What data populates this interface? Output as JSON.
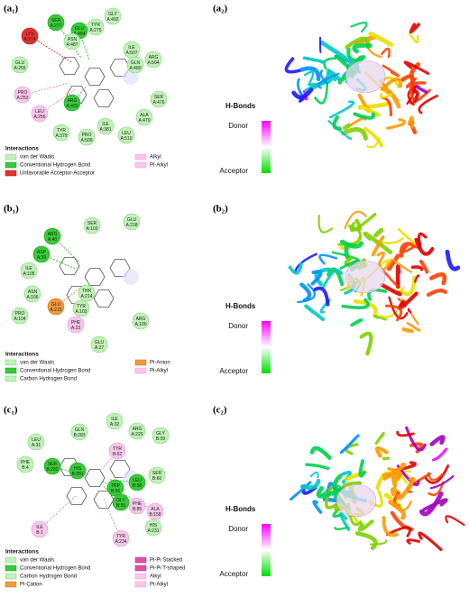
{
  "figure": {
    "rows": [
      {
        "diagram_label": "(a₁)",
        "structure_label": "(a₂)",
        "legend_title": "Interactions",
        "legend": [
          "van der Waals",
          "Conventional Hydrogen Bond",
          "Unfavorable Acceptor-Acceptor",
          "Alkyl",
          "Pi-Alkyl"
        ],
        "hbond_title": "H-Bonds",
        "hbond_donor": "Donor",
        "hbond_acceptor": "Acceptor",
        "residues": [
          {
            "name": "SER",
            "id": "A:277"
          },
          {
            "name": "GLY",
            "id": "A:492"
          },
          {
            "name": "GLU",
            "id": "A:484"
          },
          {
            "name": "TYR",
            "id": "A:275"
          },
          {
            "name": "ASN",
            "id": "A:487"
          },
          {
            "name": "ILE",
            "id": "A:507"
          },
          {
            "name": "GLN",
            "id": "A:480"
          },
          {
            "name": "ARG",
            "id": "A:504"
          },
          {
            "name": "LYS",
            "id": "A:274"
          },
          {
            "name": "GLU",
            "id": "A:255"
          },
          {
            "name": "PRO",
            "id": "A:253"
          },
          {
            "name": "LEU",
            "id": "A:256"
          },
          {
            "name": "ARG",
            "id": "A:483"
          },
          {
            "name": "SER",
            "id": "A:476"
          },
          {
            "name": "ALA",
            "id": "A:479"
          },
          {
            "name": "TYR",
            "id": "A:379"
          },
          {
            "name": "ILE",
            "id": "A:381"
          },
          {
            "name": "LEU",
            "id": "A:510"
          },
          {
            "name": "PRO",
            "id": "A:509"
          }
        ]
      },
      {
        "diagram_label": "(b₁)",
        "structure_label": "(b₂)",
        "legend_title": "Interactions",
        "legend": [
          "van der Waals",
          "Conventional Hydrogen Bond",
          "Carbon Hydrogen Bond",
          "Pi-Anion",
          "Pi-Alkyl"
        ],
        "hbond_title": "H-Bonds",
        "hbond_donor": "Donor",
        "hbond_acceptor": "Acceptor",
        "residues": [
          {
            "name": "ARG",
            "id": "A:40"
          },
          {
            "name": "SER",
            "id": "A:103"
          },
          {
            "name": "GLU",
            "id": "A:218"
          },
          {
            "name": "ASP",
            "id": "A:39"
          },
          {
            "name": "ILE",
            "id": "A:105"
          },
          {
            "name": "ASN",
            "id": "A:106"
          },
          {
            "name": "PRO",
            "id": "A:104"
          },
          {
            "name": "THR",
            "id": "A:214"
          },
          {
            "name": "TYR",
            "id": "A:103"
          },
          {
            "name": "GLU",
            "id": "A:215"
          },
          {
            "name": "PHE",
            "id": "A:23"
          },
          {
            "name": "ARG",
            "id": "A:100"
          },
          {
            "name": "GLU",
            "id": "A:27"
          }
        ]
      },
      {
        "diagram_label": "(c₁)",
        "structure_label": "(c₂)",
        "legend_title": "Interactions",
        "legend": [
          "van der Waals",
          "Conventional Hydrogen Bond",
          "Carbon Hydrogen Bond",
          "Pi-Cation",
          "Pi-Pi Stacked",
          "Pi-Pi T-shaped",
          "Alkyl",
          "Pi-Alkyl"
        ],
        "hbond_title": "H-Bonds",
        "hbond_donor": "Donor",
        "hbond_acceptor": "Acceptor",
        "residues": [
          {
            "name": "LEU",
            "id": "A:31"
          },
          {
            "name": "GLN",
            "id": "B:283"
          },
          {
            "name": "ILE",
            "id": "A:32"
          },
          {
            "name": "ARG",
            "id": "A:229"
          },
          {
            "name": "GLY",
            "id": "B:59"
          },
          {
            "name": "PHE",
            "id": "B:4"
          },
          {
            "name": "SER",
            "id": "B:282"
          },
          {
            "name": "HIS",
            "id": "B:281"
          },
          {
            "name": "TYR",
            "id": "B:62"
          },
          {
            "name": "SER",
            "id": "B:60"
          },
          {
            "name": "LEU",
            "id": "B:58"
          },
          {
            "name": "TRP",
            "id": "B:56"
          },
          {
            "name": "GLY",
            "id": "B:55"
          },
          {
            "name": "PHE",
            "id": "B:85"
          },
          {
            "name": "ALA",
            "id": "B:158"
          },
          {
            "name": "ILE",
            "id": "B:1"
          },
          {
            "name": "HIS",
            "id": "A:231"
          },
          {
            "name": "TYR",
            "id": "A:234"
          }
        ]
      }
    ]
  }
}
